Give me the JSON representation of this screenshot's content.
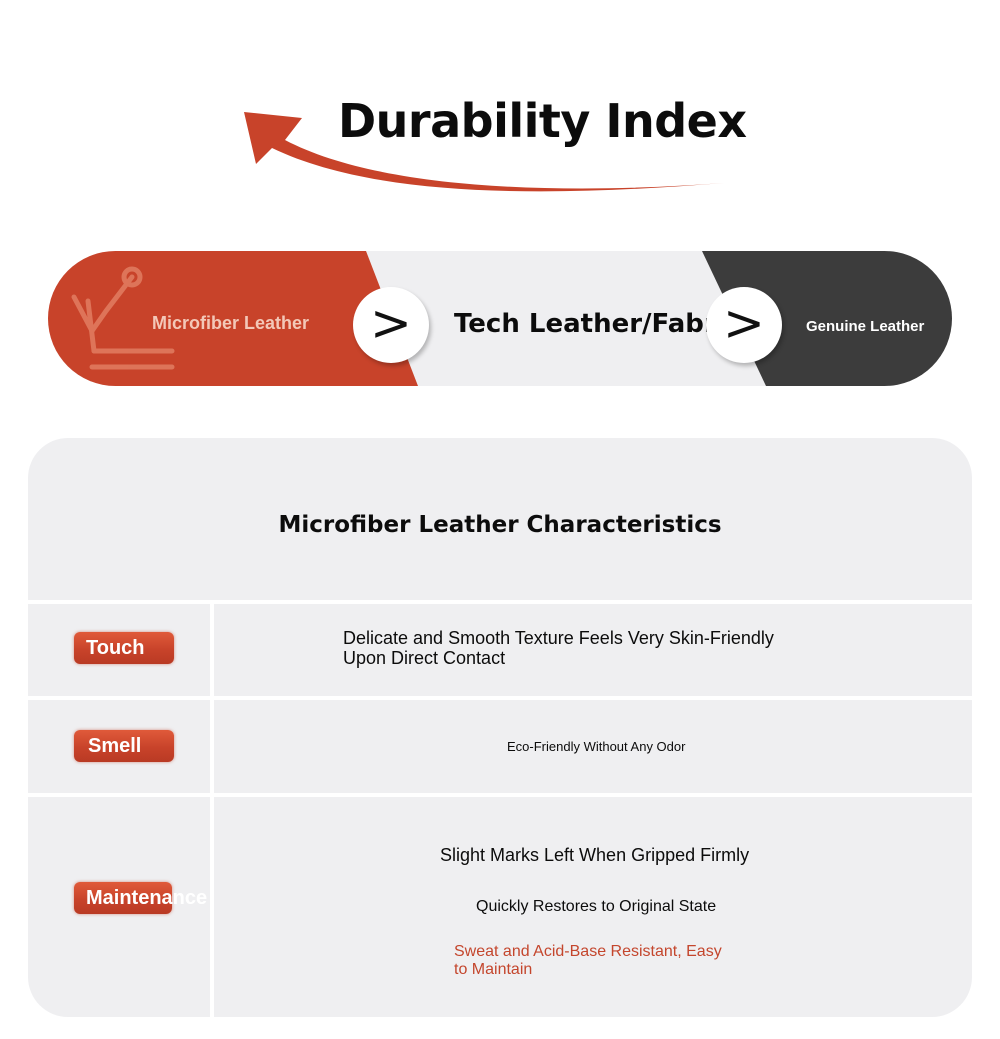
{
  "header": {
    "title": "Durability Index",
    "accent_color": "#c8432a"
  },
  "comparison": {
    "items": [
      {
        "label": "Microfiber Leather",
        "color": "#c8432a"
      },
      {
        "label": "Tech Leather/Fabric",
        "color": "#efeff1"
      },
      {
        "label": "Genuine Leather",
        "color": "#3c3c3c"
      }
    ],
    "separator": ">",
    "icon": "chart-up-icon"
  },
  "characteristics": {
    "title": "Microfiber Leather Characteristics",
    "rows": [
      {
        "tag": "Touch",
        "lines": [
          "Delicate and Smooth Texture Feels Very Skin-Friendly",
          "Upon Direct Contact"
        ]
      },
      {
        "tag": "Smell",
        "lines": [
          "Eco-Friendly Without Any Odor"
        ]
      },
      {
        "tag": "Maintenance",
        "lines": [
          "Slight Marks Left When Gripped Firmly",
          "Quickly Restores to Original State",
          "Sweat and Acid-Base Resistant, Easy",
          "to Maintain"
        ]
      }
    ]
  }
}
